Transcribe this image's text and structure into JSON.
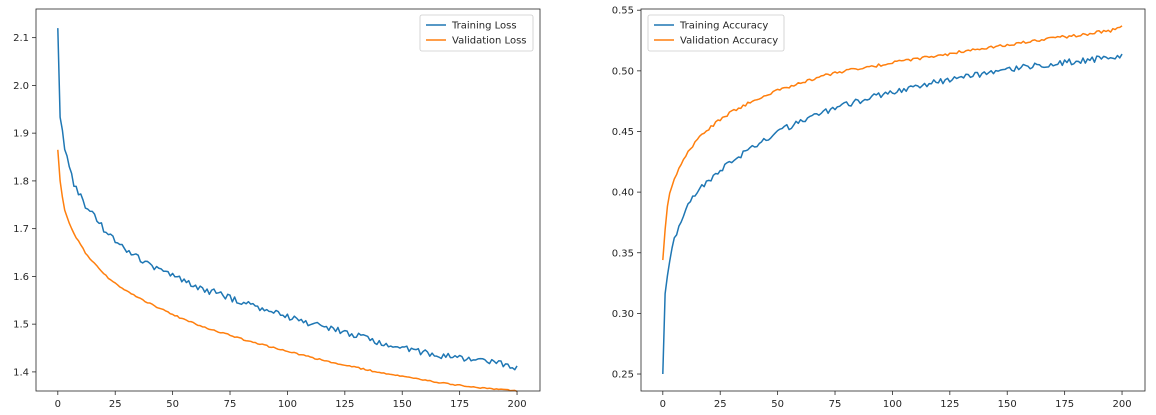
{
  "colors": {
    "training": "#1f77b4",
    "validation": "#ff7f0e",
    "axes": "#262626",
    "legend_border": "#cccccc"
  },
  "chart_data": [
    {
      "type": "line",
      "title": "",
      "xlabel": "",
      "ylabel": "",
      "xlim": [
        -9.5,
        210
      ],
      "ylim": [
        1.36,
        2.16
      ],
      "xticks": [
        0,
        25,
        50,
        75,
        100,
        125,
        150,
        175,
        200
      ],
      "xtick_labels": [
        "0",
        "25",
        "50",
        "75",
        "100",
        "125",
        "150",
        "175",
        "200"
      ],
      "yticks": [
        1.4,
        1.5,
        1.6,
        1.7,
        1.8,
        1.9,
        2.0,
        2.1
      ],
      "ytick_labels": [
        "1.4",
        "1.5",
        "1.6",
        "1.7",
        "1.8",
        "1.9",
        "2.0",
        "2.1"
      ],
      "grid": false,
      "legend_position": "top-right",
      "x_points": [
        0,
        1,
        2,
        3,
        5,
        7,
        10,
        12,
        15,
        20,
        25,
        30,
        35,
        40,
        45,
        50,
        55,
        60,
        65,
        70,
        75,
        80,
        85,
        90,
        95,
        100,
        105,
        110,
        115,
        120,
        125,
        130,
        135,
        140,
        145,
        150,
        155,
        160,
        165,
        170,
        175,
        180,
        185,
        190,
        195,
        200
      ],
      "series": [
        {
          "name": "Training Loss",
          "values": [
            2.12,
            1.94,
            1.91,
            1.87,
            1.83,
            1.79,
            1.77,
            1.75,
            1.73,
            1.7,
            1.675,
            1.655,
            1.64,
            1.625,
            1.61,
            1.6,
            1.59,
            1.58,
            1.57,
            1.565,
            1.555,
            1.545,
            1.54,
            1.53,
            1.525,
            1.515,
            1.51,
            1.5,
            1.495,
            1.49,
            1.482,
            1.475,
            1.47,
            1.462,
            1.457,
            1.45,
            1.445,
            1.44,
            1.436,
            1.432,
            1.428,
            1.425,
            1.422,
            1.418,
            1.415,
            1.41
          ],
          "jitter": 0.007,
          "color_key": "training"
        },
        {
          "name": "Validation Loss",
          "values": [
            1.865,
            1.8,
            1.765,
            1.74,
            1.71,
            1.69,
            1.665,
            1.65,
            1.632,
            1.605,
            1.585,
            1.57,
            1.555,
            1.543,
            1.532,
            1.52,
            1.51,
            1.5,
            1.492,
            1.484,
            1.477,
            1.469,
            1.462,
            1.456,
            1.449,
            1.443,
            1.437,
            1.431,
            1.425,
            1.42,
            1.414,
            1.409,
            1.404,
            1.399,
            1.395,
            1.39,
            1.386,
            1.382,
            1.379,
            1.375,
            1.372,
            1.369,
            1.366,
            1.364,
            1.362,
            1.36
          ],
          "jitter": 0.0015,
          "color_key": "validation"
        }
      ]
    },
    {
      "type": "line",
      "title": "",
      "xlabel": "",
      "ylabel": "",
      "xlim": [
        -9.5,
        210
      ],
      "ylim": [
        0.236,
        0.551
      ],
      "xticks": [
        0,
        25,
        50,
        75,
        100,
        125,
        150,
        175,
        200
      ],
      "xtick_labels": [
        "0",
        "25",
        "50",
        "75",
        "100",
        "125",
        "150",
        "175",
        "200"
      ],
      "yticks": [
        0.25,
        0.3,
        0.35,
        0.4,
        0.45,
        0.5,
        0.55
      ],
      "ytick_labels": [
        "0.25",
        "0.30",
        "0.35",
        "0.40",
        "0.45",
        "0.50",
        "0.55"
      ],
      "grid": false,
      "legend_position": "top-left",
      "x_points": [
        0,
        1,
        2,
        3,
        5,
        7,
        10,
        12,
        15,
        20,
        25,
        30,
        35,
        40,
        45,
        50,
        55,
        60,
        65,
        70,
        75,
        80,
        85,
        90,
        95,
        100,
        105,
        110,
        115,
        120,
        125,
        130,
        135,
        140,
        145,
        150,
        155,
        160,
        165,
        170,
        175,
        180,
        185,
        190,
        195,
        200
      ],
      "series": [
        {
          "name": "Training Accuracy",
          "values": [
            0.25,
            0.318,
            0.33,
            0.345,
            0.36,
            0.372,
            0.385,
            0.392,
            0.4,
            0.41,
            0.418,
            0.425,
            0.432,
            0.438,
            0.444,
            0.45,
            0.454,
            0.458,
            0.462,
            0.466,
            0.469,
            0.472,
            0.475,
            0.478,
            0.48,
            0.483,
            0.485,
            0.487,
            0.489,
            0.491,
            0.493,
            0.495,
            0.496,
            0.498,
            0.5,
            0.501,
            0.502,
            0.504,
            0.505,
            0.506,
            0.507,
            0.508,
            0.509,
            0.51,
            0.511,
            0.512
          ],
          "jitter": 0.0025,
          "color_key": "training"
        },
        {
          "name": "Validation Accuracy",
          "values": [
            0.344,
            0.37,
            0.388,
            0.398,
            0.41,
            0.42,
            0.43,
            0.435,
            0.443,
            0.452,
            0.46,
            0.466,
            0.471,
            0.476,
            0.48,
            0.484,
            0.487,
            0.49,
            0.493,
            0.496,
            0.498,
            0.5,
            0.502,
            0.503,
            0.505,
            0.507,
            0.508,
            0.51,
            0.511,
            0.513,
            0.514,
            0.516,
            0.517,
            0.519,
            0.52,
            0.521,
            0.523,
            0.524,
            0.525,
            0.527,
            0.528,
            0.529,
            0.53,
            0.532,
            0.533,
            0.536
          ],
          "jitter": 0.0012,
          "color_key": "validation"
        }
      ]
    }
  ]
}
